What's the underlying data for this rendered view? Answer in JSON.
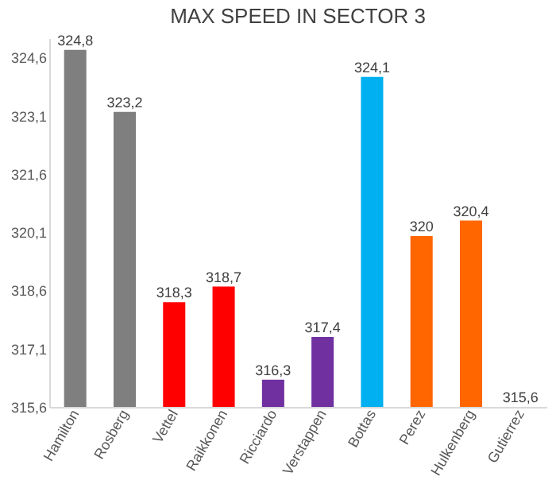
{
  "chart_data": {
    "type": "bar",
    "title": "MAX SPEED IN SECTOR 3",
    "categories": [
      "Hamilton",
      "Rosberg",
      "Vettel",
      "Raikkonen",
      "Ricciardo",
      "Verstappen",
      "Bottas",
      "Perez",
      "Hulkenberg",
      "Gutierrez"
    ],
    "values": [
      324.8,
      323.2,
      318.3,
      318.7,
      316.3,
      317.4,
      324.1,
      320,
      320.4,
      315.6
    ],
    "value_labels": [
      "324,8",
      "323,2",
      "318,3",
      "318,7",
      "316,3",
      "317,4",
      "324,1",
      "320",
      "320,4",
      "315,6"
    ],
    "colors": [
      "#7f7f7f",
      "#7f7f7f",
      "#ff0000",
      "#ff0000",
      "#7030a0",
      "#7030a0",
      "#00b0f0",
      "#ff6600",
      "#ff6600",
      "#ff6600"
    ],
    "ylim": [
      315.6,
      325.1
    ],
    "yticks": [
      {
        "value": 315.6,
        "label": "315,6"
      },
      {
        "value": 317.1,
        "label": "317,1"
      },
      {
        "value": 318.6,
        "label": "318,6"
      },
      {
        "value": 320.1,
        "label": "320,1"
      },
      {
        "value": 321.6,
        "label": "321,6"
      },
      {
        "value": 323.1,
        "label": "323,1"
      },
      {
        "value": 324.6,
        "label": "324,6"
      }
    ],
    "grid": false
  }
}
